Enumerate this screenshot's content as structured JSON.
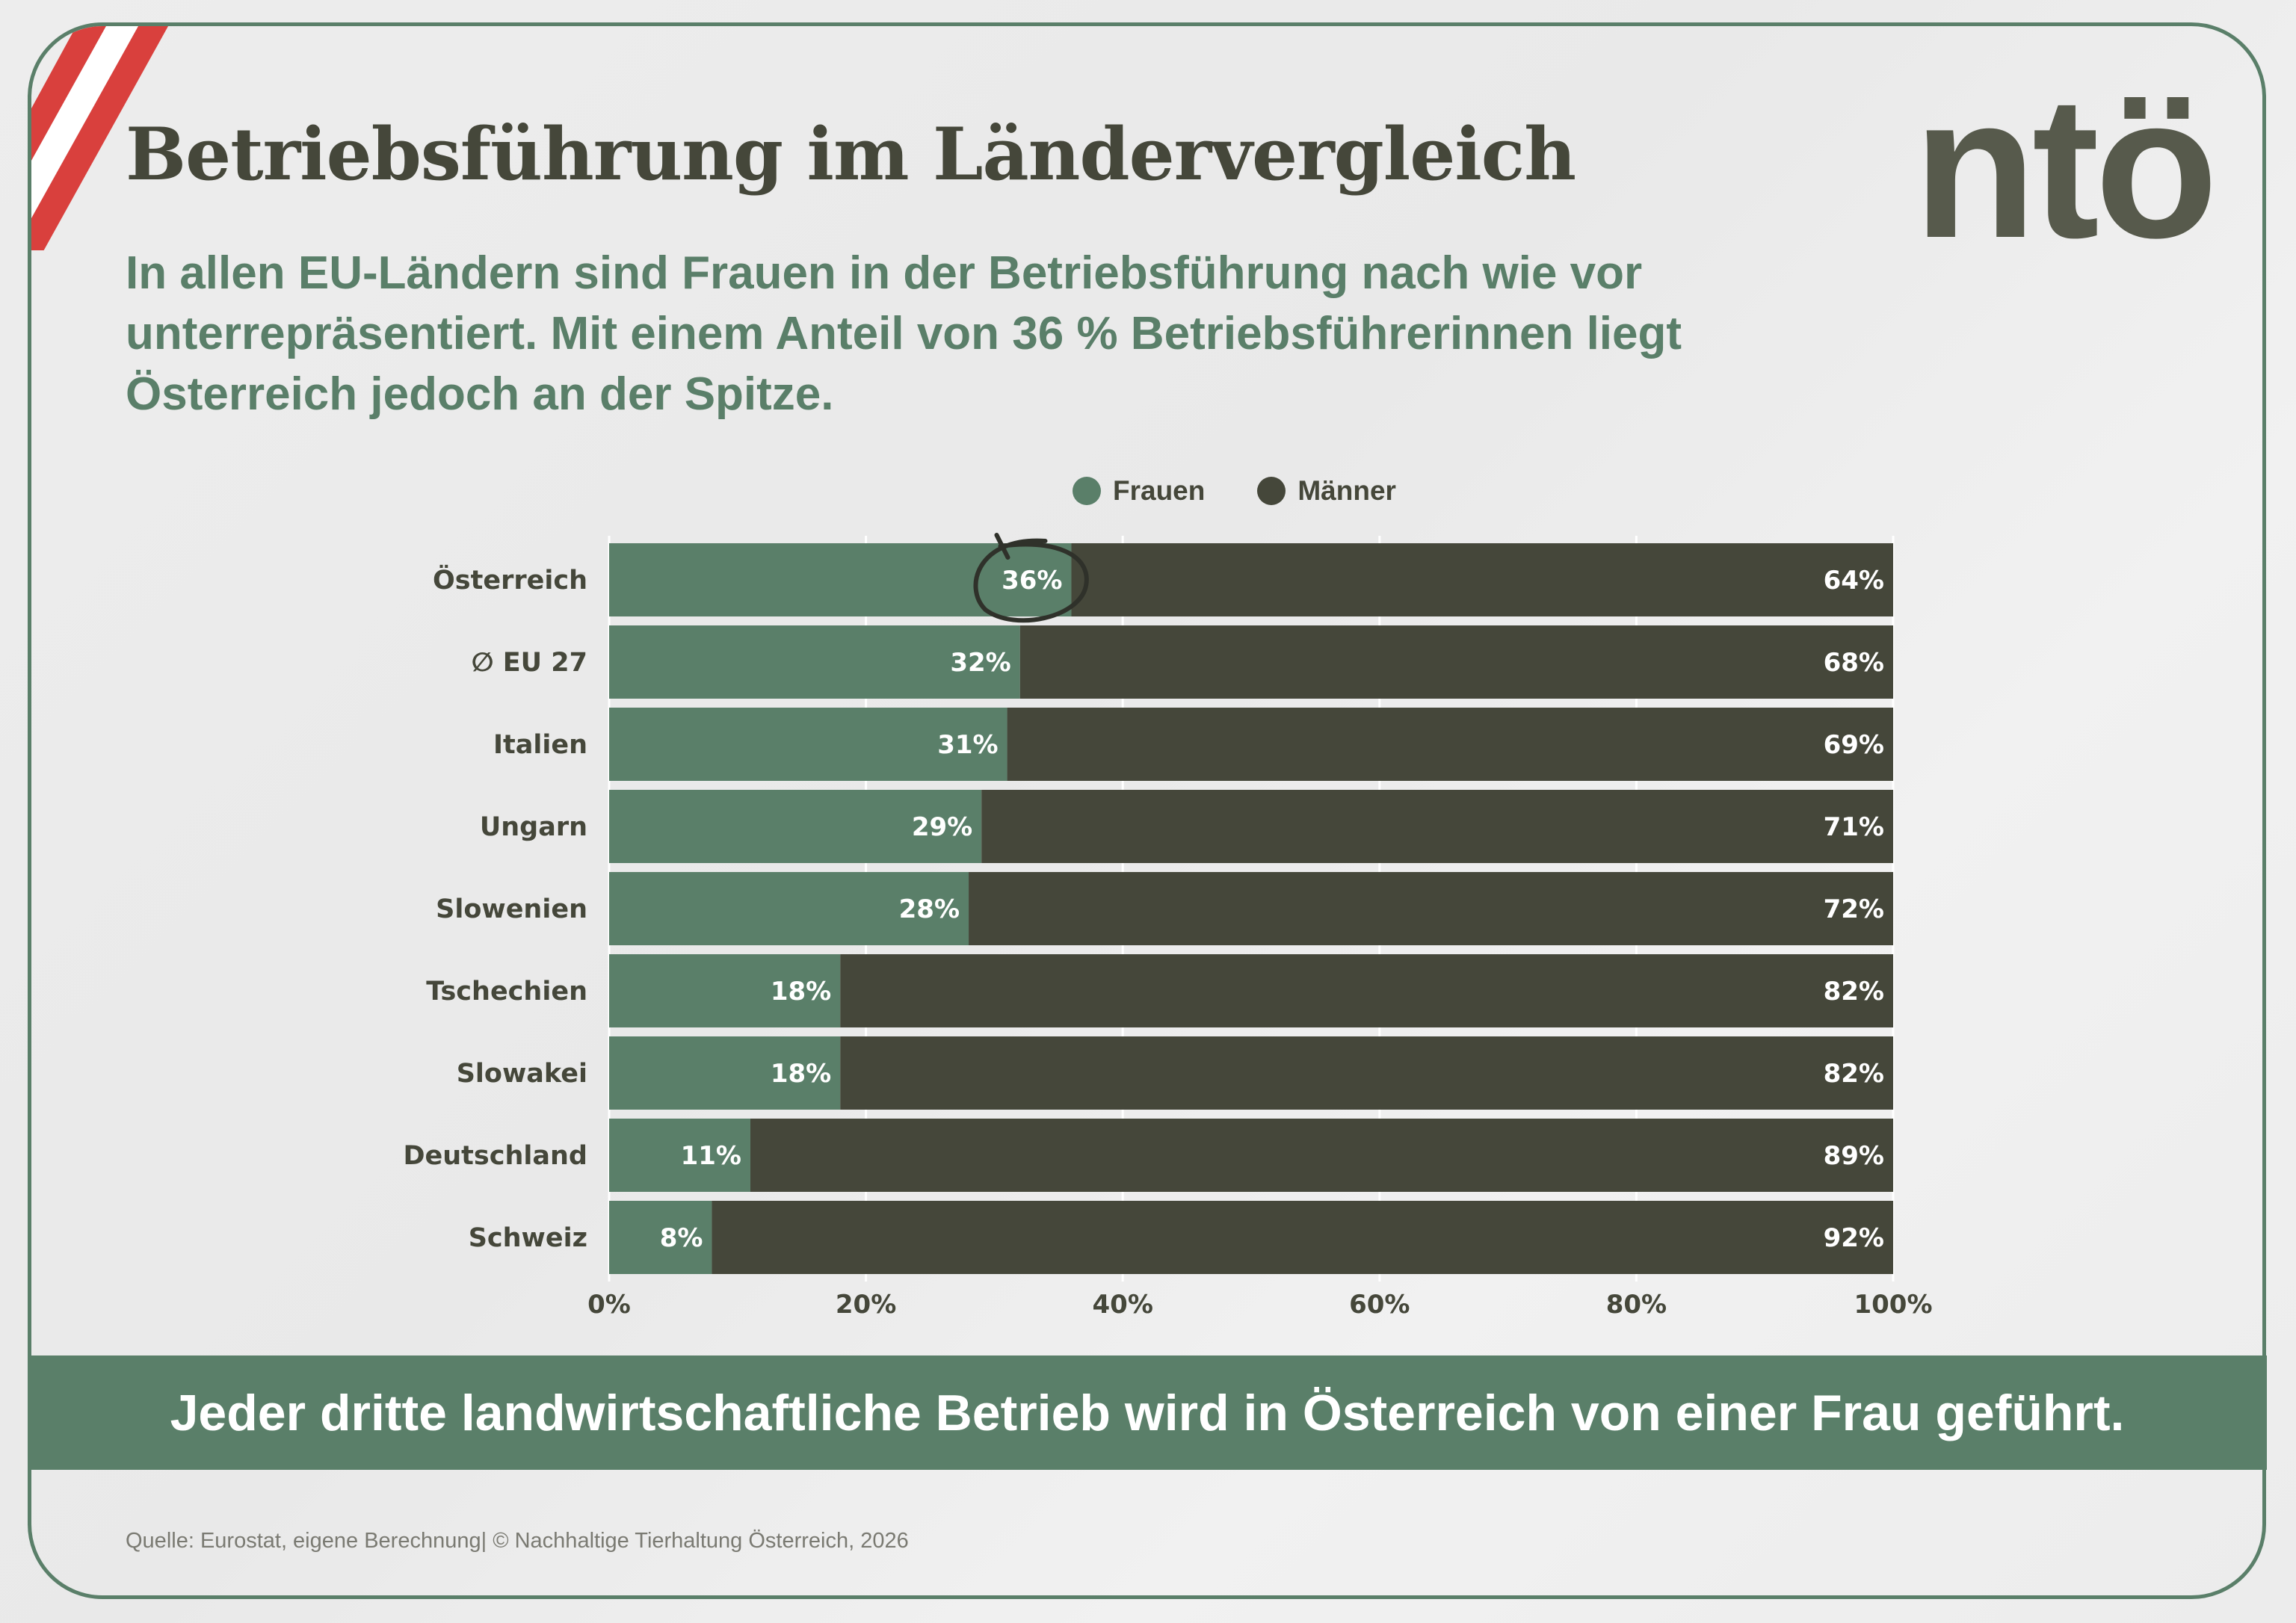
{
  "title": "Betriebsführung im Ländervergleich",
  "subtitle": "In allen EU-Ländern sind Frauen in der Betriebsführung nach wie vor unterrepräsentiert. Mit einem Anteil von 36 % Betriebsführerinnen liegt Österreich jedoch an der Spitze.",
  "logo": "ntö",
  "banner": "Jeder dritte landwirtschaftliche Betrieb wird in Österreich von einer Frau geführt.",
  "footer": "Quelle: Eurostat, eigene Berechnung|  © Nachhaltige Tierhaltung Österreich, 2026",
  "colors": {
    "frauen": "#5a7f69",
    "maenner": "#45473a",
    "flag_red": "#d9403d",
    "accent": "#5a7f69"
  },
  "chart_data": {
    "type": "bar",
    "orientation": "horizontal",
    "stacked": true,
    "categories": [
      "Österreich",
      "∅ EU 27",
      "Italien",
      "Ungarn",
      "Slowenien",
      "Tschechien",
      "Slowakei",
      "Deutschland",
      "Schweiz"
    ],
    "series": [
      {
        "name": "Frauen",
        "values": [
          36,
          32,
          31,
          29,
          28,
          18,
          18,
          11,
          8
        ]
      },
      {
        "name": "Männer",
        "values": [
          64,
          68,
          69,
          71,
          72,
          82,
          82,
          89,
          92
        ]
      }
    ],
    "xlim": [
      0,
      100
    ],
    "xticks": [
      "0%",
      "20%",
      "40%",
      "60%",
      "80%",
      "100%"
    ],
    "legend": "top",
    "grid": true,
    "annotation": "circle around Österreich 36%"
  }
}
